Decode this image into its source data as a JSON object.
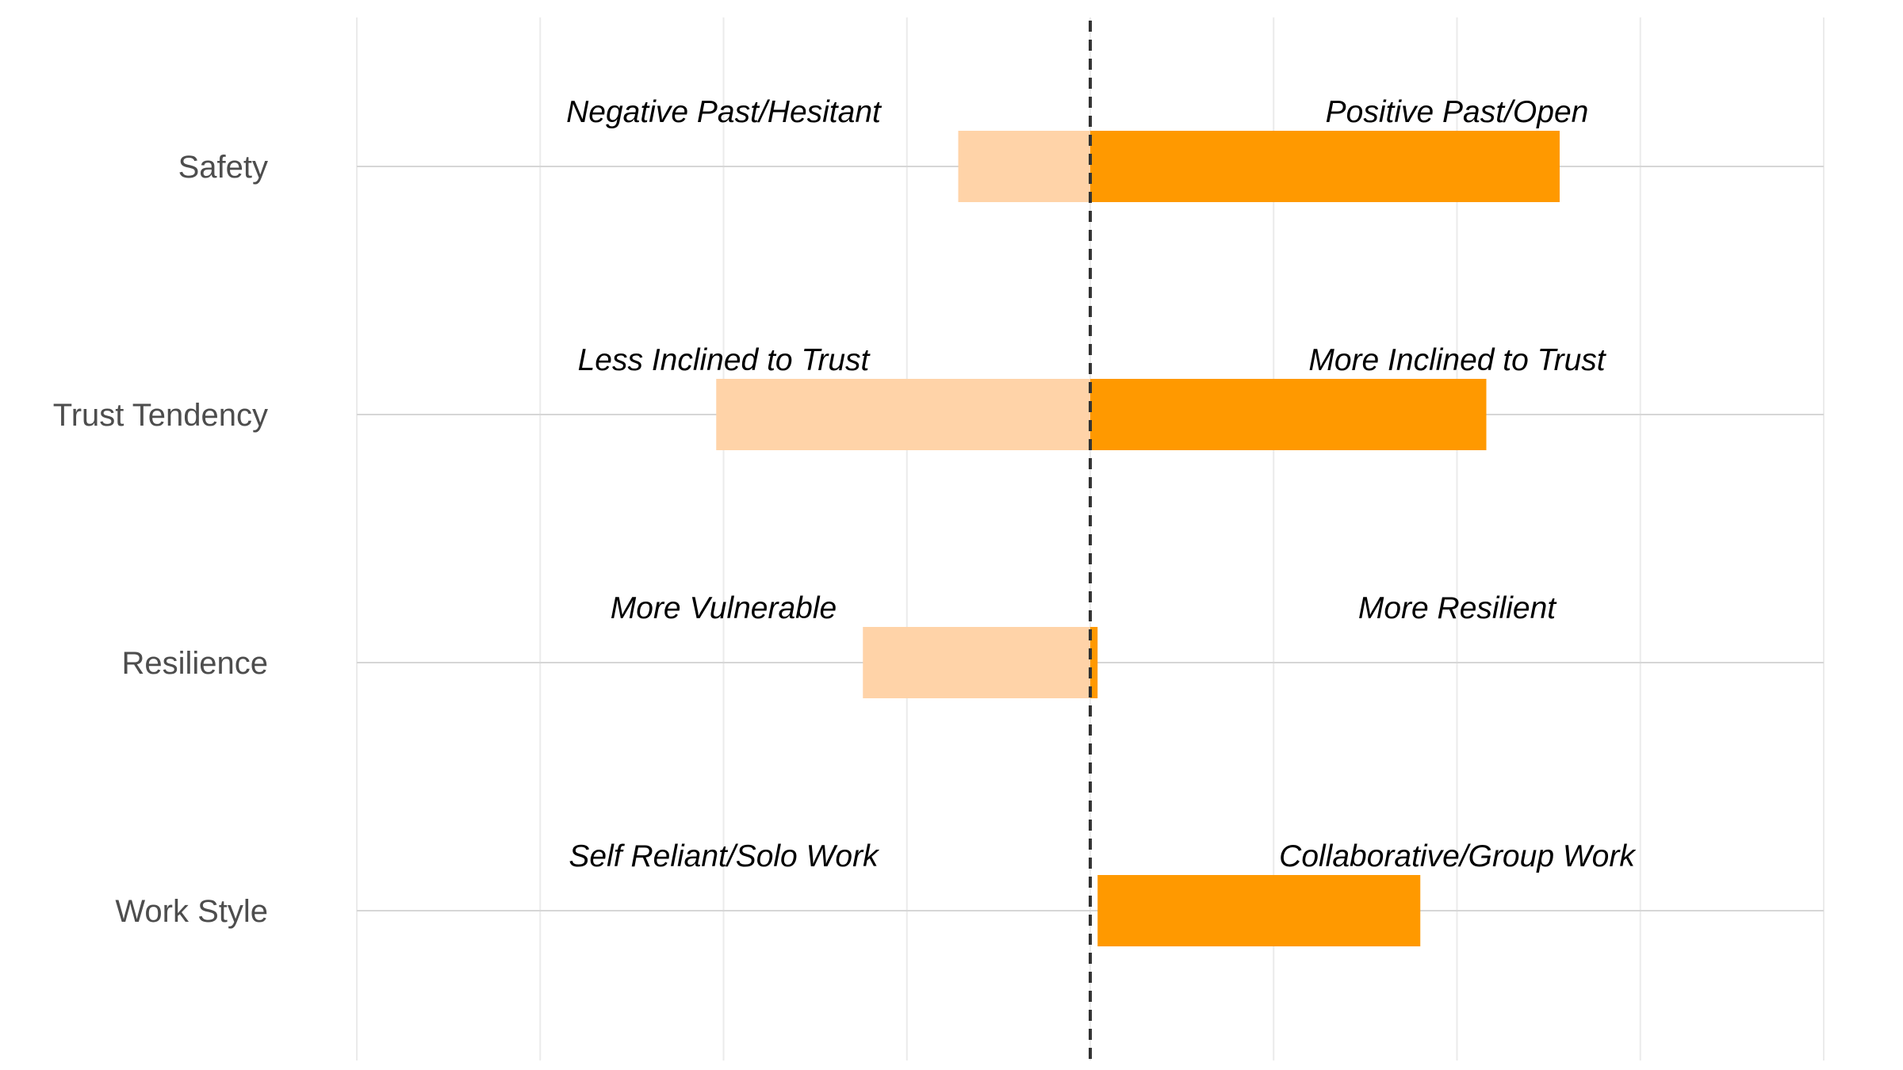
{
  "chart_data": {
    "type": "bar",
    "orientation": "horizontal-diverging",
    "xlim": [
      -1,
      1
    ],
    "center": 0,
    "grid": true,
    "categories": [
      "Safety",
      "Trust Tendency",
      "Resilience",
      "Work Style"
    ],
    "series": [
      {
        "values": [
          -0.18,
          -0.51,
          -0.31,
          0.0
        ],
        "color": "#FFD3A8"
      },
      {
        "values": [
          0.64,
          0.54,
          0.01,
          0.44
        ],
        "color": "#FF9900",
        "start": [
          0,
          0,
          0,
          0.01
        ]
      }
    ],
    "left_labels": [
      "Negative Past/Hesitant",
      "Less Inclined to Trust",
      "More Vulnerable",
      "Self Reliant/Solo Work"
    ],
    "right_labels": [
      "Positive Past/Open",
      "More Inclined to Trust",
      "More Resilient",
      "Collaborative/Group Work"
    ]
  }
}
